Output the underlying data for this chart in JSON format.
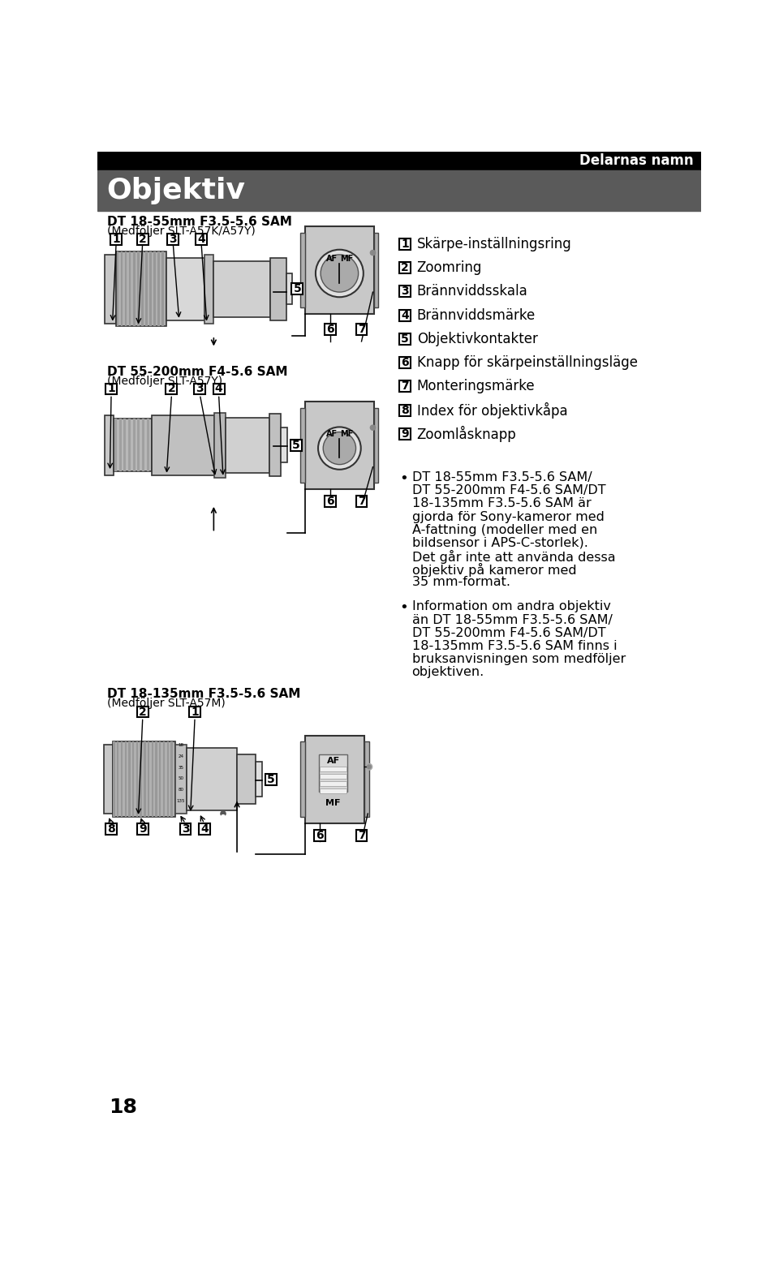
{
  "page_bg": "#ffffff",
  "header_bg": "#000000",
  "section_bg": "#6b6b6b",
  "header_text": "Delarnas namn",
  "section_title": "Objektiv",
  "page_number": "18",
  "numbered_items": [
    {
      "num": "1",
      "text": "Skärpe-inställningsring"
    },
    {
      "num": "2",
      "text": "Zoomring"
    },
    {
      "num": "3",
      "text": "Brännviddsskala"
    },
    {
      "num": "4",
      "text": "Brännviddsmärke"
    },
    {
      "num": "5",
      "text": "Objektivkontakter"
    },
    {
      "num": "6",
      "text": "Knapp för skärpeinställningsläge"
    },
    {
      "num": "7",
      "text": "Monteringsmärke"
    },
    {
      "num": "8",
      "text": "Index för objektivkåpa"
    },
    {
      "num": "9",
      "text": "Zoomlåsknapp"
    }
  ],
  "bullet_points": [
    "DT 18-55mm F3.5-5.6 SAM/\nDT 55-200mm F4-5.6 SAM/DT\n18-135mm F3.5-5.6 SAM är\ngjorda för Sony-kameror med\nA-fattning (modeller med en\nbildsensor i APS-C-storlek).\nDet går inte att använda dessa\nobjektiv på kameror med\n35 mm-format.",
    "Information om andra objektiv\nän DT 18-55mm F3.5-5.6 SAM/\nDT 55-200mm F4-5.6 SAM/DT\n18-135mm F3.5-5.6 SAM finns i\nbruksanvisningen som medföljer\nobjektiven."
  ],
  "lens1_title": "DT 18-55mm F3.5-5.6 SAM",
  "lens1_subtitle": "(Medföljer SLT-A57K/A57Y)",
  "lens2_title": "DT 55-200mm F4-5.6 SAM",
  "lens2_subtitle": "(Medföljer SLT-A57Y)",
  "lens3_title": "DT 18-135mm F3.5-5.6 SAM",
  "lens3_subtitle": "(Medföljer SLT-A57M)"
}
